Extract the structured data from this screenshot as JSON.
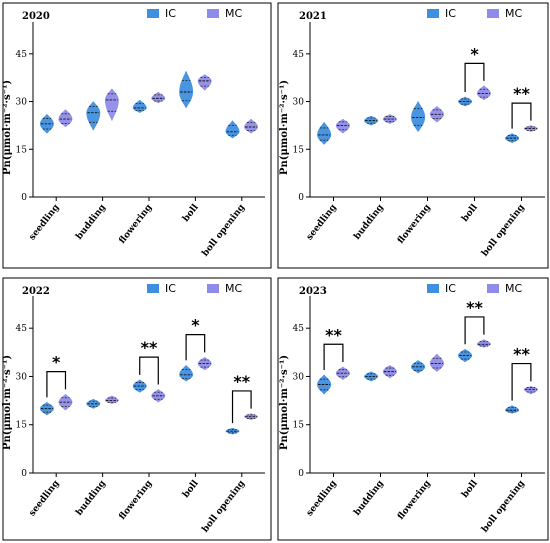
{
  "colors": {
    "IC": "#3f8fe0",
    "MC": "#8f8ce9"
  },
  "y_axis": {
    "title": "Pn(μmol·m⁻²·s⁻¹)",
    "ticks": [
      0,
      15,
      30,
      45
    ],
    "tick_labels": [
      "0",
      "15",
      "30",
      "45"
    ]
  },
  "legend": [
    "IC",
    "MC"
  ],
  "chart_data": [
    {
      "type": "violin",
      "year": "2020",
      "categories": [
        "seedling",
        "budding",
        "flowering",
        "boll",
        "boll opening"
      ],
      "ylim": [
        0,
        55
      ],
      "series": [
        {
          "name": "IC",
          "median": [
            23,
            26.5,
            28,
            33,
            20.5
          ],
          "min": [
            20,
            21,
            26.5,
            28,
            18.5
          ],
          "max": [
            26,
            30,
            30.5,
            39.5,
            24
          ]
        },
        {
          "name": "MC",
          "median": [
            24.5,
            30.5,
            31,
            36.5,
            22
          ],
          "min": [
            22,
            24,
            29.5,
            33.5,
            20
          ],
          "max": [
            27.5,
            34,
            33,
            38.5,
            24.5
          ]
        }
      ],
      "significance": []
    },
    {
      "type": "violin",
      "year": "2021",
      "categories": [
        "seedling",
        "budding",
        "flowering",
        "boll",
        "boll opening"
      ],
      "ylim": [
        0,
        55
      ],
      "series": [
        {
          "name": "IC",
          "median": [
            19.5,
            24,
            25,
            30,
            18.5
          ],
          "min": [
            16.5,
            22.5,
            20.5,
            28.5,
            17
          ],
          "max": [
            23.5,
            25.5,
            30,
            31.5,
            20
          ]
        },
        {
          "name": "MC",
          "median": [
            22.5,
            24.5,
            26,
            32.5,
            21.5
          ],
          "min": [
            20,
            23,
            23.5,
            30.5,
            20.5
          ],
          "max": [
            24.5,
            26,
            28.5,
            35,
            22.5
          ]
        }
      ],
      "significance": [
        {
          "category": "boll",
          "label": "*"
        },
        {
          "category": "boll opening",
          "label": "**"
        }
      ]
    },
    {
      "type": "violin",
      "year": "2022",
      "categories": [
        "seedling",
        "budding",
        "flowering",
        "boll",
        "boll opening"
      ],
      "ylim": [
        0,
        55
      ],
      "series": [
        {
          "name": "IC",
          "median": [
            20,
            21.5,
            27,
            30.5,
            13
          ],
          "min": [
            18,
            20,
            25,
            28.5,
            12
          ],
          "max": [
            22,
            23,
            29,
            33.5,
            14
          ]
        },
        {
          "name": "MC",
          "median": [
            22,
            22.5,
            24,
            34,
            17.5
          ],
          "min": [
            19.5,
            21.5,
            22,
            32,
            16.5
          ],
          "max": [
            24.5,
            24,
            26,
            36,
            18.5
          ]
        }
      ],
      "significance": [
        {
          "category": "seedling",
          "label": "*"
        },
        {
          "category": "flowering",
          "label": "**"
        },
        {
          "category": "boll",
          "label": "*"
        },
        {
          "category": "boll opening",
          "label": "**"
        }
      ]
    },
    {
      "type": "violin",
      "year": "2023",
      "categories": [
        "seedling",
        "budding",
        "flowering",
        "boll",
        "boll opening"
      ],
      "ylim": [
        0,
        55
      ],
      "series": [
        {
          "name": "IC",
          "median": [
            27.5,
            30,
            33,
            36.5,
            19.5
          ],
          "min": [
            24.5,
            28.5,
            31,
            34.5,
            18.5
          ],
          "max": [
            30.5,
            31.5,
            35,
            38.5,
            21
          ]
        },
        {
          "name": "MC",
          "median": [
            31,
            31.5,
            34,
            40,
            26
          ],
          "min": [
            29,
            29.5,
            31.5,
            39,
            24.5
          ],
          "max": [
            33,
            33.5,
            37,
            41.5,
            27
          ]
        }
      ],
      "significance": [
        {
          "category": "seedling",
          "label": "**"
        },
        {
          "category": "boll",
          "label": "**"
        },
        {
          "category": "boll opening",
          "label": "**"
        }
      ]
    }
  ]
}
